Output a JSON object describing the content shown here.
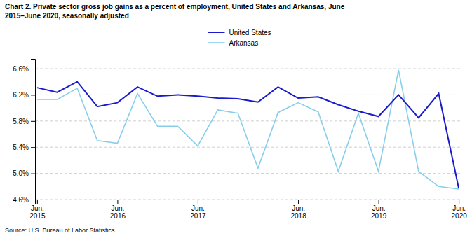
{
  "chart_data": {
    "type": "line",
    "title": "Chart 2. Private sector gross job gains as a percent of employment, United States and Arkansas,  June\n2015–June 2020, seasonally adjusted",
    "annotations": [
      "Source: U.S. Bureau of Labor Statistics."
    ],
    "categories": [
      "Jun.\n2015",
      null,
      null,
      null,
      "Jun.\n2016",
      null,
      null,
      null,
      "Jun.\n2017",
      null,
      null,
      null,
      null,
      "Jun.\n2018",
      null,
      null,
      null,
      "Jun.\n2019",
      null,
      null,
      null,
      "Jun.\n2020"
    ],
    "series": [
      {
        "name": "United States",
        "color": "#1a1acd",
        "values": [
          6.31,
          6.24,
          6.4,
          6.02,
          6.08,
          6.32,
          6.18,
          6.2,
          6.18,
          6.15,
          6.14,
          6.09,
          6.32,
          6.15,
          6.17,
          6.05,
          5.95,
          5.87,
          6.2,
          5.85,
          6.22,
          4.77
        ]
      },
      {
        "name": "Arkansas",
        "color": "#87CEEB",
        "values": [
          6.13,
          6.13,
          6.3,
          5.5,
          5.46,
          6.22,
          5.72,
          5.72,
          5.42,
          5.97,
          5.92,
          5.08,
          5.93,
          6.08,
          5.94,
          5.03,
          5.92,
          5.03,
          6.58,
          5.03,
          4.8,
          4.76
        ]
      }
    ],
    "ylim": [
      4.6,
      6.75
    ],
    "yticks": [
      {
        "value": 4.6,
        "label": "4.6%"
      },
      {
        "value": 5.0,
        "label": "5.0%"
      },
      {
        "value": 5.4,
        "label": "5.4%"
      },
      {
        "value": 5.8,
        "label": "5.8%"
      },
      {
        "value": 6.2,
        "label": "6.2%"
      },
      {
        "value": 6.6,
        "label": "6.6%"
      }
    ],
    "grid": true,
    "legend": "top"
  }
}
